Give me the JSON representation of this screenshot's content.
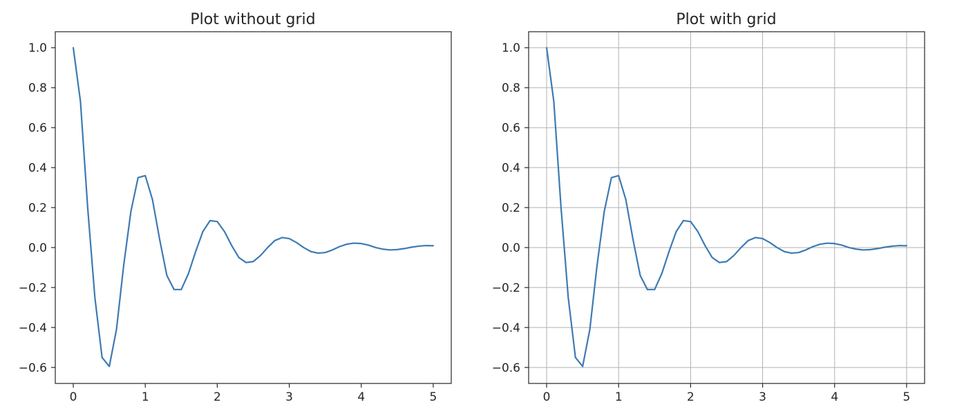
{
  "chart_data": [
    {
      "type": "line",
      "title": "Plot without grid",
      "xlabel": "",
      "ylabel": "",
      "xlim": [
        -0.25,
        5.25
      ],
      "ylim": [
        -0.68,
        1.08
      ],
      "grid": false,
      "xticks": [
        0,
        1,
        2,
        3,
        4,
        5
      ],
      "xtick_labels": [
        "0",
        "1",
        "2",
        "3",
        "4",
        "5"
      ],
      "yticks": [
        -0.6,
        -0.4,
        -0.2,
        0.0,
        0.2,
        0.4,
        0.6,
        0.8,
        1.0
      ],
      "ytick_labels": [
        "−0.6",
        "−0.4",
        "−0.2",
        "0.0",
        "0.2",
        "0.4",
        "0.6",
        "0.8",
        "1.0"
      ],
      "series": [
        {
          "color": "#3d7ab3",
          "x": [
            0,
            0.1,
            0.2,
            0.3,
            0.4,
            0.5,
            0.6,
            0.7,
            0.8,
            0.9,
            1.0,
            1.1,
            1.2,
            1.3,
            1.4,
            1.5,
            1.6,
            1.7,
            1.8,
            1.9,
            2.0,
            2.1,
            2.2,
            2.3,
            2.4,
            2.5,
            2.6,
            2.7,
            2.8,
            2.9,
            3.0,
            3.1,
            3.2,
            3.3,
            3.4,
            3.5,
            3.6,
            3.7,
            3.8,
            3.9,
            4.0,
            4.1,
            4.2,
            4.3,
            4.4,
            4.5,
            4.6,
            4.7,
            4.8,
            4.9,
            5.0
          ],
          "y": [
            1.0,
            0.73,
            0.2,
            -0.25,
            -0.55,
            -0.595,
            -0.41,
            -0.09,
            0.18,
            0.35,
            0.36,
            0.24,
            0.04,
            -0.14,
            -0.21,
            -0.21,
            -0.13,
            -0.02,
            0.08,
            0.135,
            0.13,
            0.08,
            0.01,
            -0.05,
            -0.075,
            -0.07,
            -0.04,
            0.0,
            0.035,
            0.05,
            0.045,
            0.025,
            0.0,
            -0.02,
            -0.028,
            -0.025,
            -0.012,
            0.005,
            0.017,
            0.022,
            0.02,
            0.012,
            0.0,
            -0.008,
            -0.012,
            -0.01,
            -0.005,
            0.002,
            0.007,
            0.01,
            0.009
          ]
        }
      ]
    },
    {
      "type": "line",
      "title": "Plot with grid",
      "xlabel": "",
      "ylabel": "",
      "xlim": [
        -0.25,
        5.25
      ],
      "ylim": [
        -0.68,
        1.08
      ],
      "grid": true,
      "xticks": [
        0,
        1,
        2,
        3,
        4,
        5
      ],
      "xtick_labels": [
        "0",
        "1",
        "2",
        "3",
        "4",
        "5"
      ],
      "yticks": [
        -0.6,
        -0.4,
        -0.2,
        0.0,
        0.2,
        0.4,
        0.6,
        0.8,
        1.0
      ],
      "ytick_labels": [
        "−0.6",
        "−0.4",
        "−0.2",
        "0.0",
        "0.2",
        "0.4",
        "0.6",
        "0.8",
        "1.0"
      ],
      "series": [
        {
          "color": "#3d7ab3",
          "x": [
            0,
            0.1,
            0.2,
            0.3,
            0.4,
            0.5,
            0.6,
            0.7,
            0.8,
            0.9,
            1.0,
            1.1,
            1.2,
            1.3,
            1.4,
            1.5,
            1.6,
            1.7,
            1.8,
            1.9,
            2.0,
            2.1,
            2.2,
            2.3,
            2.4,
            2.5,
            2.6,
            2.7,
            2.8,
            2.9,
            3.0,
            3.1,
            3.2,
            3.3,
            3.4,
            3.5,
            3.6,
            3.7,
            3.8,
            3.9,
            4.0,
            4.1,
            4.2,
            4.3,
            4.4,
            4.5,
            4.6,
            4.7,
            4.8,
            4.9,
            5.0
          ],
          "y": [
            1.0,
            0.73,
            0.2,
            -0.25,
            -0.55,
            -0.595,
            -0.41,
            -0.09,
            0.18,
            0.35,
            0.36,
            0.24,
            0.04,
            -0.14,
            -0.21,
            -0.21,
            -0.13,
            -0.02,
            0.08,
            0.135,
            0.13,
            0.08,
            0.01,
            -0.05,
            -0.075,
            -0.07,
            -0.04,
            0.0,
            0.035,
            0.05,
            0.045,
            0.025,
            0.0,
            -0.02,
            -0.028,
            -0.025,
            -0.012,
            0.005,
            0.017,
            0.022,
            0.02,
            0.012,
            0.0,
            -0.008,
            -0.012,
            -0.01,
            -0.005,
            0.002,
            0.007,
            0.01,
            0.009
          ]
        }
      ]
    }
  ]
}
